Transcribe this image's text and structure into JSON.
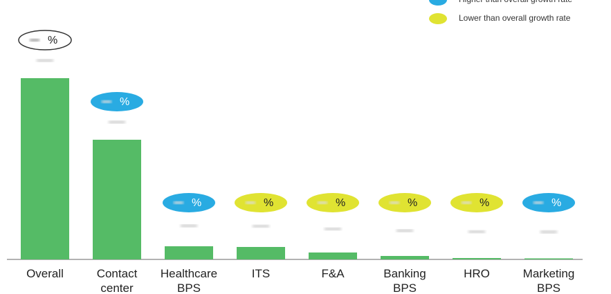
{
  "chart_data": {
    "type": "bar",
    "categories": [
      "Overall",
      "Contact center",
      "Healthcare BPS",
      "ITS",
      "F&A",
      "Banking BPS",
      "HRO",
      "Marketing BPS"
    ],
    "values": [
      262,
      173,
      19,
      18,
      10,
      5,
      2,
      1.5
    ],
    "color": "#55bb66",
    "badge_text": "%",
    "badge_colors": [
      "#ffffff",
      "#29abe2",
      "#29abe2",
      "#e0e332",
      "#e0e332",
      "#e0e332",
      "#e0e332",
      "#29abe2"
    ],
    "legend": [
      {
        "name": "Higher than overall growth rate",
        "color": "#29abe2"
      },
      {
        "name": "Lower than overall growth rate",
        "color": "#e0e332"
      }
    ]
  }
}
